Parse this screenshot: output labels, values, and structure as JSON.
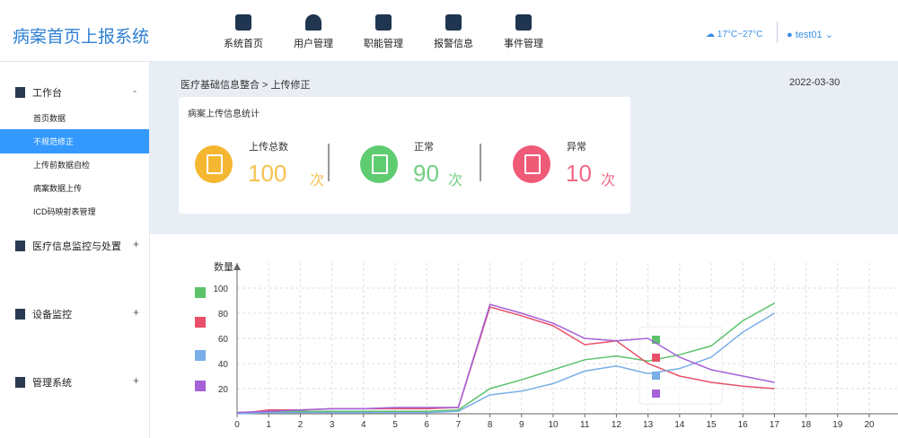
{
  "header": {
    "title": "病案首页上报系统",
    "nav": [
      "系统首页",
      "用户管理",
      "职能管理",
      "报警信息",
      "事件管理"
    ],
    "weather": "17°C~27°C",
    "user": "test01"
  },
  "sidebar": {
    "groups": [
      {
        "label": "工作台",
        "toggle": "-",
        "items": [
          "首页数据",
          "不规范修正",
          "上传前数据自检",
          "病案数据上传",
          "ICD码映射表管理"
        ]
      },
      {
        "label": "医疗信息监控与处置",
        "toggle": "+"
      },
      {
        "label": "设备监控",
        "toggle": "+"
      },
      {
        "label": "管理系统",
        "toggle": "+"
      }
    ]
  },
  "breadcrumb": "医疗基础信息整合 > 上传修正",
  "date": "2022-03-30",
  "stats": {
    "title": "病案上传信息统计",
    "items": [
      {
        "label": "上传总数",
        "value": "100",
        "unit": "次"
      },
      {
        "label": "正常",
        "value": "90",
        "unit": "次"
      },
      {
        "label": "异常",
        "value": "10",
        "unit": "次"
      }
    ]
  },
  "chart_data": {
    "type": "line",
    "y_label": "数量",
    "x": [
      0,
      1,
      2,
      3,
      4,
      5,
      6,
      7,
      8,
      9,
      10,
      11,
      12,
      13,
      14,
      15,
      16,
      17
    ],
    "series": [
      {
        "color": "#5cc36b",
        "values": [
          1,
          2,
          2,
          2,
          2,
          2,
          2,
          3,
          20,
          27,
          35,
          43,
          46,
          42,
          47,
          54,
          74,
          88
        ]
      },
      {
        "color": "#e8506a",
        "values": [
          0,
          3,
          3,
          4,
          4,
          4,
          4,
          5,
          85,
          78,
          70,
          55,
          58,
          40,
          30,
          25,
          22,
          20
        ]
      },
      {
        "color": "#7aaee8",
        "values": [
          0,
          1,
          1,
          1,
          1,
          1,
          1,
          2,
          15,
          18,
          24,
          34,
          38,
          32,
          36,
          45,
          65,
          80
        ]
      },
      {
        "color": "#a461d8",
        "values": [
          1,
          2,
          3,
          4,
          4,
          5,
          5,
          5,
          87,
          80,
          72,
          60,
          58,
          60,
          45,
          35,
          30,
          25
        ]
      }
    ],
    "xlim": [
      0,
      21
    ],
    "ylim": [
      0,
      120
    ],
    "xticks": [
      0,
      1,
      2,
      3,
      4,
      5,
      6,
      7,
      8,
      9,
      10,
      11,
      12,
      13,
      14,
      15,
      16,
      17,
      18,
      19,
      20
    ],
    "yticks": [
      20,
      40,
      60,
      80,
      100
    ],
    "grid": true
  }
}
